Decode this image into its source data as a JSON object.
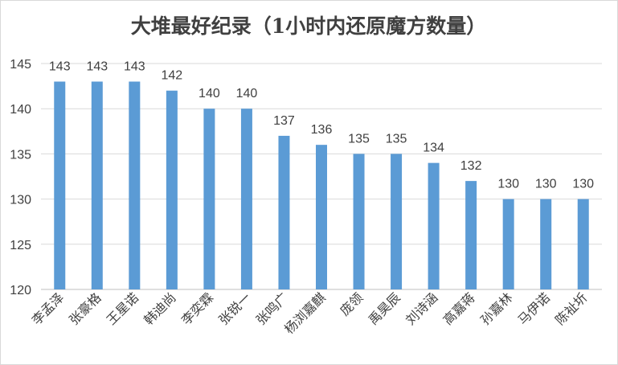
{
  "chart_data": {
    "type": "bar",
    "title": "大堆最好纪录（1小时内还原魔方数量）",
    "xlabel": "",
    "ylabel": "",
    "ylim": [
      120,
      145
    ],
    "yticks": [
      120,
      125,
      130,
      135,
      140,
      145
    ],
    "grid": true,
    "legend": "none",
    "bar_color": "#5b9bd5",
    "categories": [
      "李孟泽",
      "张豪格",
      "王星诺",
      "韩迪尚",
      "李奕霖",
      "张锐一",
      "张鸣广",
      "杨浏嘉麒",
      "庞领",
      "禹昊辰",
      "刘诗涵",
      "高嘉蒋",
      "孙嘉林",
      "马伊诺",
      "陈祉圻"
    ],
    "values": [
      143,
      143,
      143,
      142,
      140,
      140,
      137,
      136,
      135,
      135,
      134,
      132,
      130,
      130,
      130
    ]
  }
}
